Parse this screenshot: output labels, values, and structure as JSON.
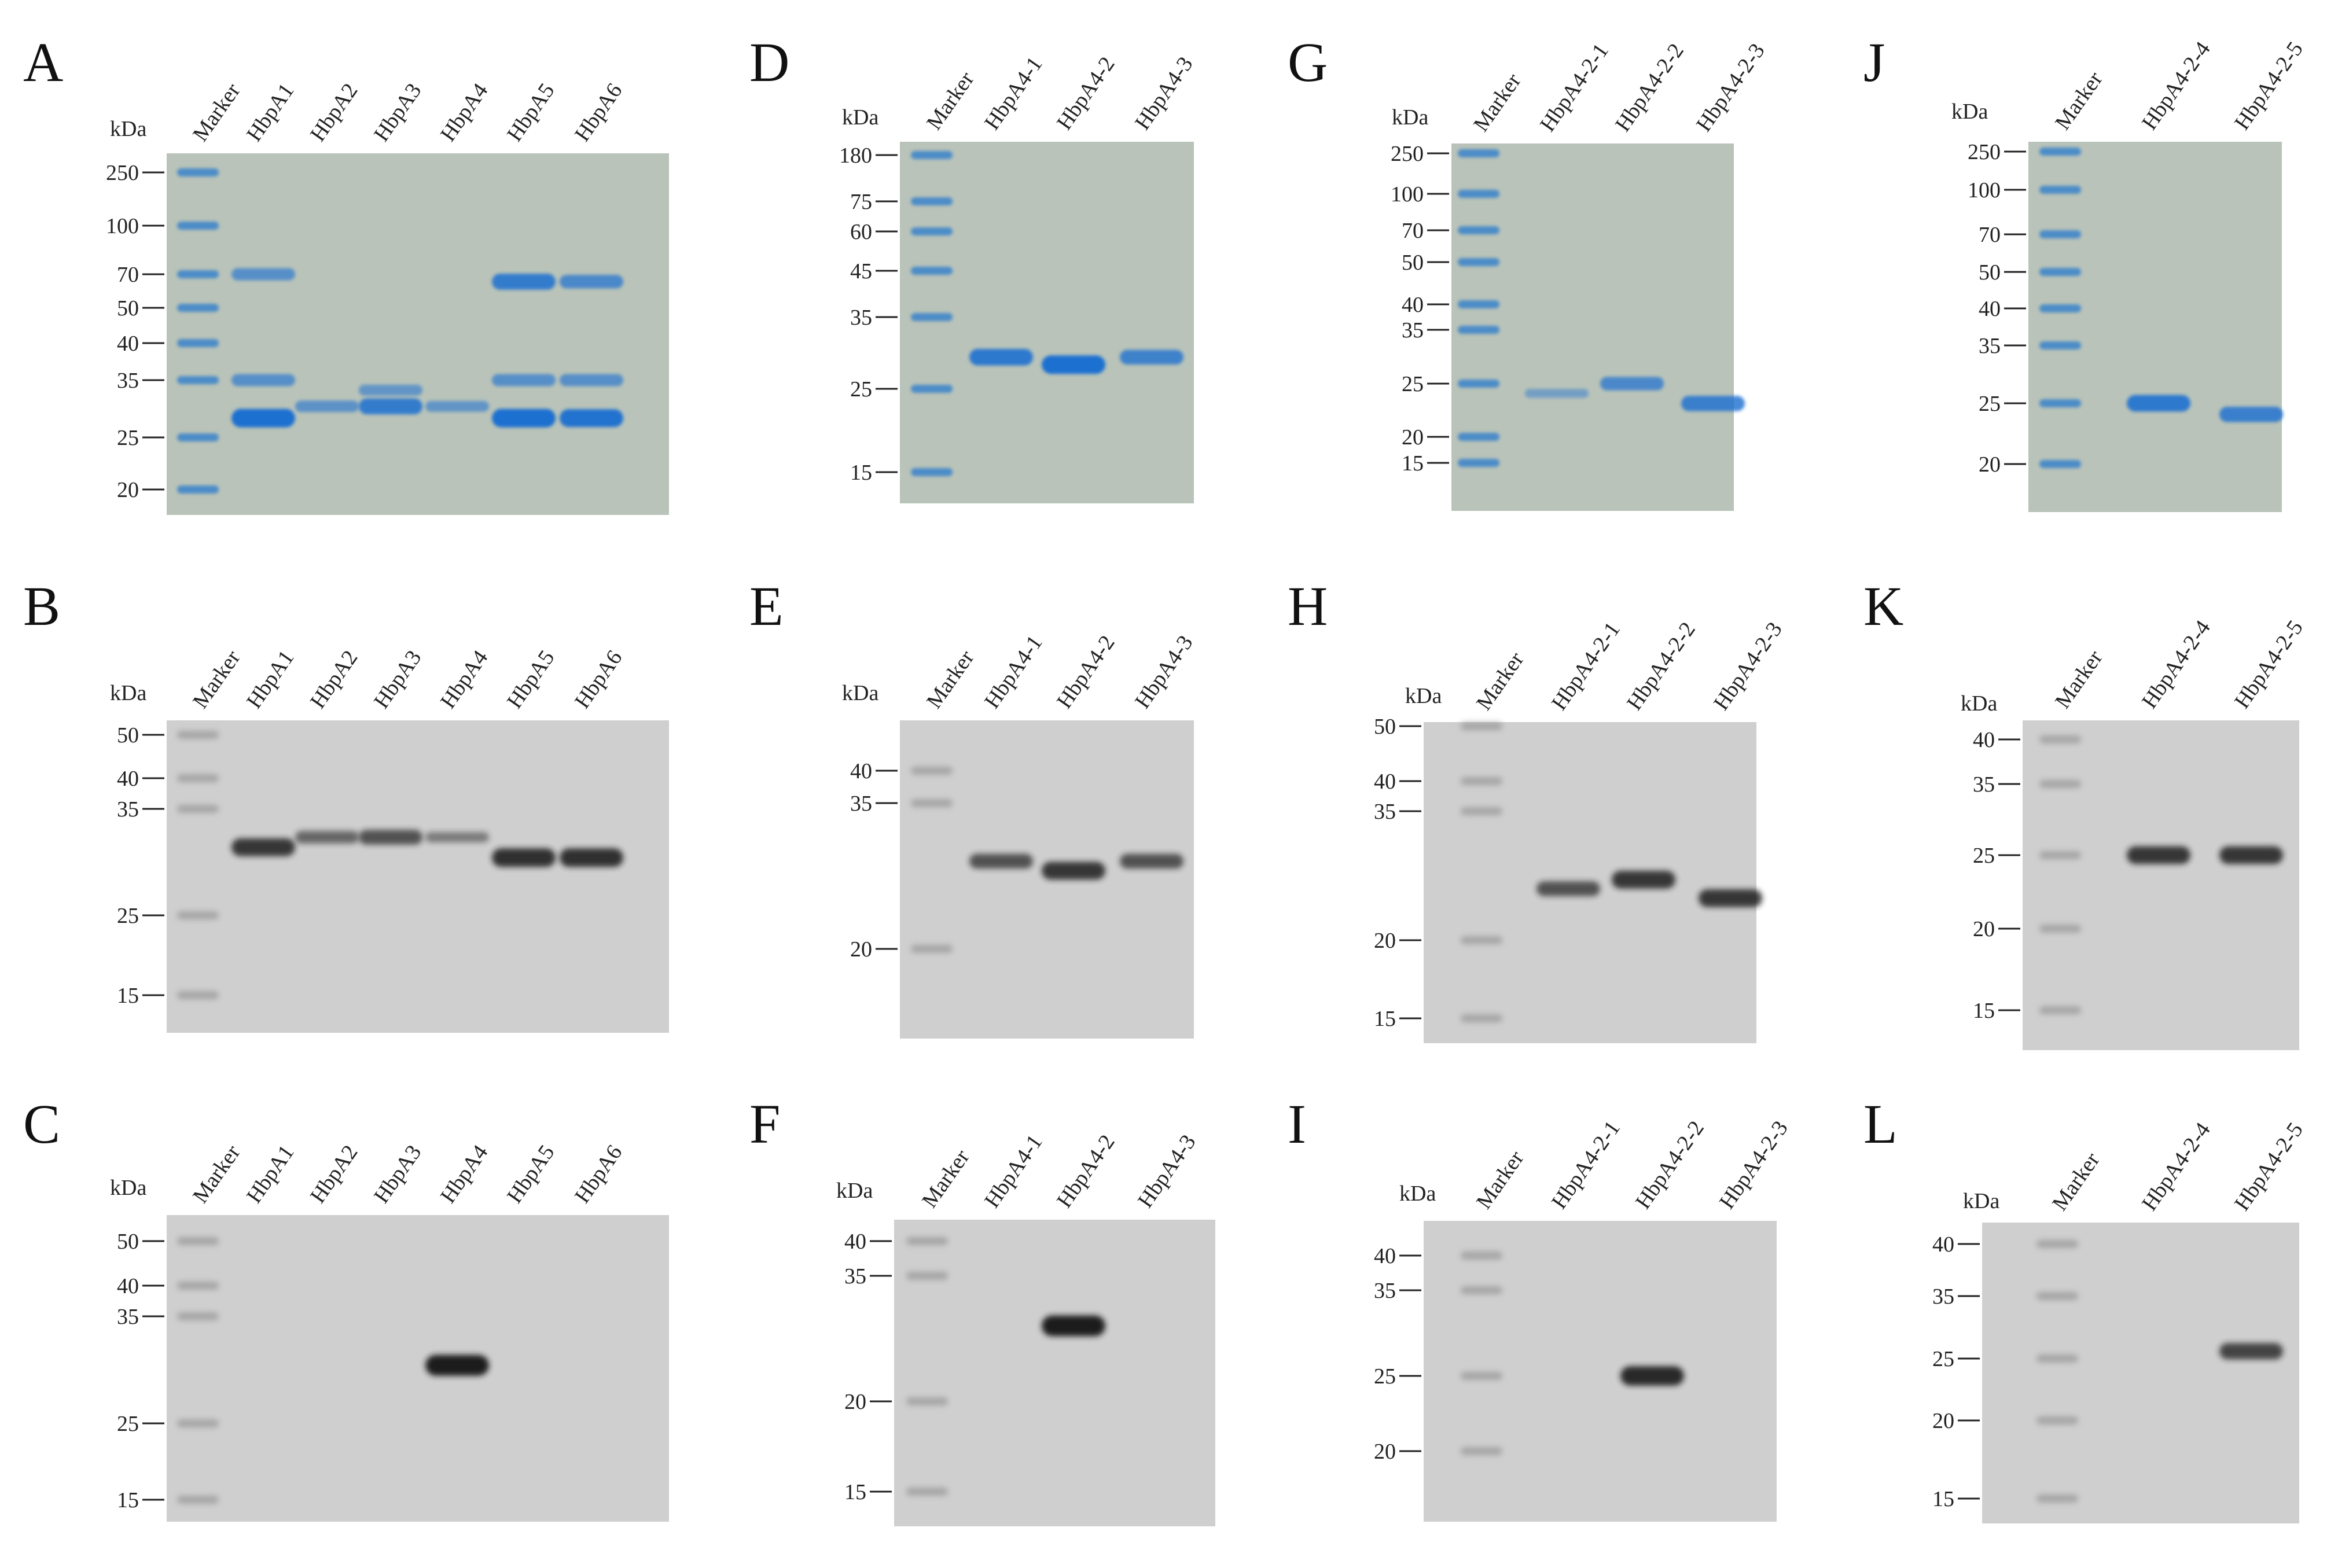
{
  "unit_label": "kDa",
  "panels": [
    {
      "label": "A",
      "kind": "coomassie",
      "lanes": [
        "Marker",
        "HbpA1",
        "HbpA2",
        "HbpA3",
        "HbpA4",
        "HbpA5",
        "HbpA6"
      ],
      "ticks": [
        "250",
        "100",
        "70",
        "50",
        "40",
        "35",
        "25",
        "20"
      ],
      "bands": [
        {
          "lane": "HbpA1",
          "kda": 28,
          "strength": 1.0
        },
        {
          "lane": "HbpA1",
          "kda": 70,
          "strength": 0.5
        },
        {
          "lane": "HbpA1",
          "kda": 35,
          "strength": 0.5
        },
        {
          "lane": "HbpA2",
          "kda": 30,
          "strength": 0.45
        },
        {
          "lane": "HbpA3",
          "kda": 30,
          "strength": 0.8
        },
        {
          "lane": "HbpA3",
          "kda": 33,
          "strength": 0.4
        },
        {
          "lane": "HbpA4",
          "kda": 30,
          "strength": 0.4
        },
        {
          "lane": "HbpA5",
          "kda": 28,
          "strength": 1.0
        },
        {
          "lane": "HbpA5",
          "kda": 65,
          "strength": 0.8
        },
        {
          "lane": "HbpA5",
          "kda": 35,
          "strength": 0.5
        },
        {
          "lane": "HbpA6",
          "kda": 28,
          "strength": 0.95
        },
        {
          "lane": "HbpA6",
          "kda": 65,
          "strength": 0.6
        },
        {
          "lane": "HbpA6",
          "kda": 35,
          "strength": 0.5
        }
      ]
    },
    {
      "label": "B",
      "kind": "blot",
      "lanes": [
        "Marker",
        "HbpA1",
        "HbpA2",
        "HbpA3",
        "HbpA4",
        "HbpA5",
        "HbpA6"
      ],
      "ticks": [
        "50",
        "40",
        "35",
        "25",
        "15"
      ],
      "bands": [
        {
          "lane": "HbpA1",
          "kda": 31,
          "strength": 0.8
        },
        {
          "lane": "HbpA2",
          "kda": 32,
          "strength": 0.45
        },
        {
          "lane": "HbpA3",
          "kda": 32,
          "strength": 0.6
        },
        {
          "lane": "HbpA4",
          "kda": 32,
          "strength": 0.3
        },
        {
          "lane": "HbpA5",
          "kda": 30,
          "strength": 0.85
        },
        {
          "lane": "HbpA6",
          "kda": 30,
          "strength": 0.85
        }
      ]
    },
    {
      "label": "C",
      "kind": "blot",
      "lanes": [
        "Marker",
        "HbpA1",
        "HbpA2",
        "HbpA3",
        "HbpA4",
        "HbpA5",
        "HbpA6"
      ],
      "ticks": [
        "50",
        "40",
        "35",
        "25",
        "15"
      ],
      "bands": [
        {
          "lane": "HbpA4",
          "kda": 30,
          "strength": 1.0
        }
      ]
    },
    {
      "label": "D",
      "kind": "coomassie",
      "lanes": [
        "Marker",
        "HbpA4-1",
        "HbpA4-2",
        "HbpA4-3"
      ],
      "ticks": [
        "180",
        "75",
        "60",
        "45",
        "35",
        "25",
        "15"
      ],
      "bands": [
        {
          "lane": "HbpA4-1",
          "kda": 29,
          "strength": 0.85
        },
        {
          "lane": "HbpA4-2",
          "kda": 28,
          "strength": 1.0
        },
        {
          "lane": "HbpA4-3",
          "kda": 29,
          "strength": 0.7
        }
      ]
    },
    {
      "label": "E",
      "kind": "blot",
      "lanes": [
        "Marker",
        "HbpA4-1",
        "HbpA4-2",
        "HbpA4-3"
      ],
      "ticks": [
        "40",
        "35",
        "20"
      ],
      "bands": [
        {
          "lane": "HbpA4-1",
          "kda": 28,
          "strength": 0.6
        },
        {
          "lane": "HbpA4-2",
          "kda": 27,
          "strength": 0.8
        },
        {
          "lane": "HbpA4-3",
          "kda": 28,
          "strength": 0.6
        }
      ]
    },
    {
      "label": "F",
      "kind": "blot",
      "lanes": [
        "Marker",
        "HbpA4-1",
        "HbpA4-2",
        "HbpA4-3"
      ],
      "ticks": [
        "40",
        "35",
        "20",
        "15"
      ],
      "bands": [
        {
          "lane": "HbpA4-2",
          "kda": 28,
          "strength": 1.0
        }
      ]
    },
    {
      "label": "G",
      "kind": "coomassie",
      "lanes": [
        "Marker",
        "HbpA4-2-1",
        "HbpA4-2-2",
        "HbpA4-2-3"
      ],
      "ticks": [
        "250",
        "100",
        "70",
        "50",
        "40",
        "35",
        "25",
        "20",
        "15"
      ],
      "bands": [
        {
          "lane": "HbpA4-2-1",
          "kda": 24,
          "strength": 0.25
        },
        {
          "lane": "HbpA4-2-2",
          "kda": 25,
          "strength": 0.6
        },
        {
          "lane": "HbpA4-2-3",
          "kda": 23,
          "strength": 0.75
        }
      ]
    },
    {
      "label": "H",
      "kind": "blot",
      "lanes": [
        "Marker",
        "HbpA4-2-1",
        "HbpA4-2-2",
        "HbpA4-2-3"
      ],
      "ticks": [
        "50",
        "40",
        "35",
        "20",
        "15"
      ],
      "bands": [
        {
          "lane": "HbpA4-2-1",
          "kda": 25,
          "strength": 0.6
        },
        {
          "lane": "HbpA4-2-2",
          "kda": 26,
          "strength": 0.8
        },
        {
          "lane": "HbpA4-2-3",
          "kda": 24,
          "strength": 0.8
        }
      ]
    },
    {
      "label": "I",
      "kind": "blot",
      "lanes": [
        "Marker",
        "HbpA4-2-1",
        "HbpA4-2-2",
        "HbpA4-2-3"
      ],
      "ticks": [
        "40",
        "35",
        "25",
        "20"
      ],
      "bands": [
        {
          "lane": "HbpA4-2-2",
          "kda": 25,
          "strength": 0.9
        }
      ]
    },
    {
      "label": "J",
      "kind": "coomassie",
      "lanes": [
        "Marker",
        "HbpA4-2-4",
        "HbpA4-2-5"
      ],
      "ticks": [
        "250",
        "100",
        "70",
        "50",
        "40",
        "35",
        "25",
        "20"
      ],
      "bands": [
        {
          "lane": "HbpA4-2-4",
          "kda": 25,
          "strength": 0.85
        },
        {
          "lane": "HbpA4-2-5",
          "kda": 24,
          "strength": 0.75
        }
      ]
    },
    {
      "label": "K",
      "kind": "blot",
      "lanes": [
        "Marker",
        "HbpA4-2-4",
        "HbpA4-2-5"
      ],
      "ticks": [
        "40",
        "35",
        "25",
        "20",
        "15"
      ],
      "bands": [
        {
          "lane": "HbpA4-2-4",
          "kda": 25,
          "strength": 0.8
        },
        {
          "lane": "HbpA4-2-5",
          "kda": 25,
          "strength": 0.8
        }
      ]
    },
    {
      "label": "L",
      "kind": "blot",
      "lanes": [
        "Marker",
        "HbpA4-2-4",
        "HbpA4-2-5"
      ],
      "ticks": [
        "40",
        "35",
        "25",
        "20",
        "15"
      ],
      "bands": [
        {
          "lane": "HbpA4-2-5",
          "kda": 26,
          "strength": 0.7
        }
      ]
    }
  ]
}
